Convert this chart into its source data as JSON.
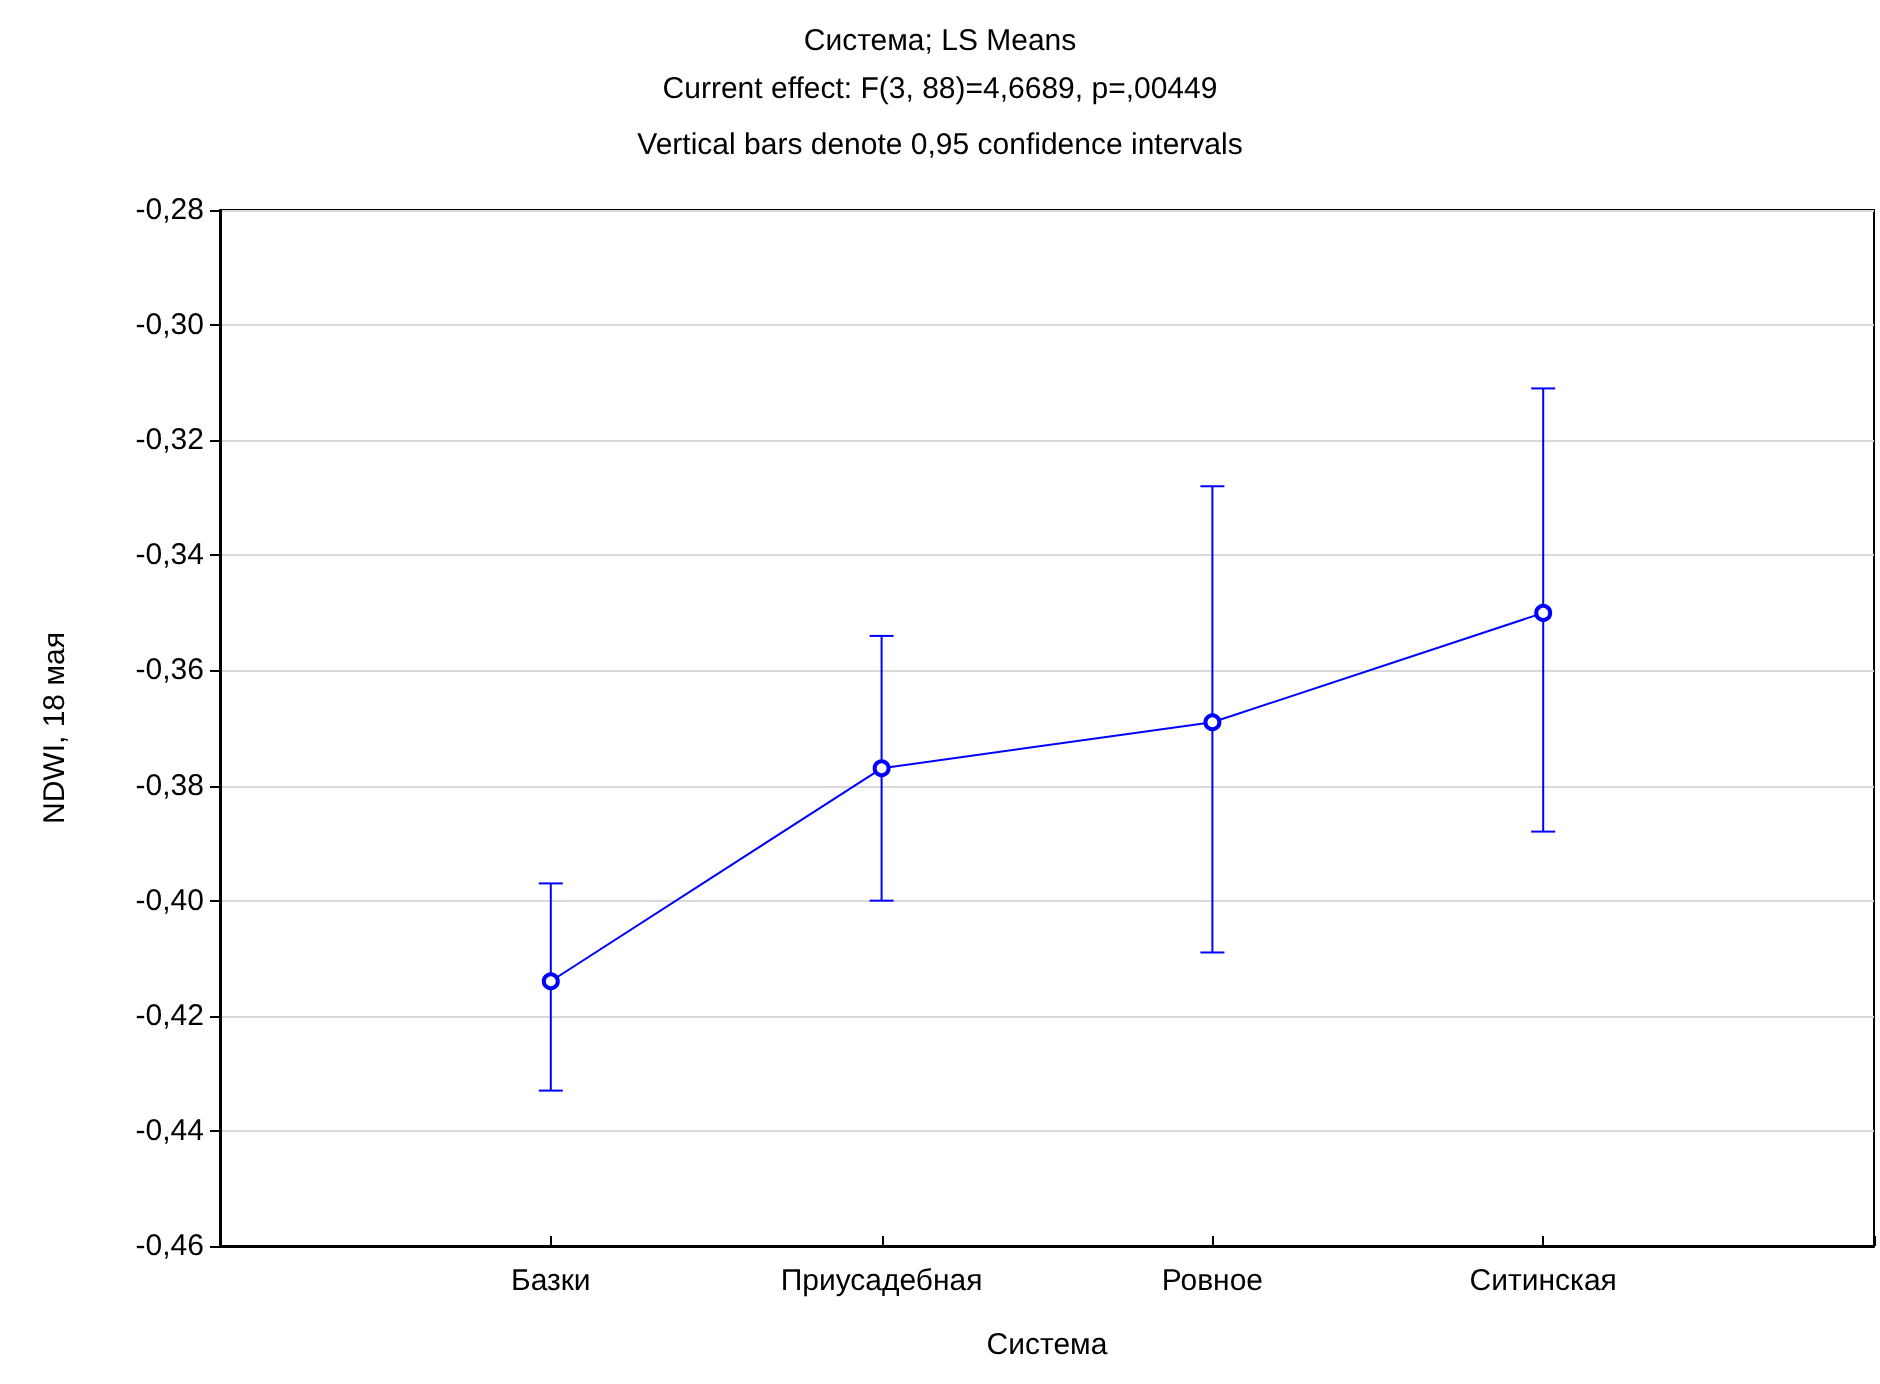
{
  "chart_data": {
    "type": "line",
    "title": "Система; LS Means",
    "subtitle": "Current effect: F(3, 88)=4,6689, p=,00449",
    "annotations": [
      "Vertical bars denote 0,95 confidence intervals"
    ],
    "xlabel": "Система",
    "ylabel": "NDWI, 18 мая",
    "categories": [
      "Базки",
      "Приусадебная",
      "Ровное",
      "Ситинская"
    ],
    "series": [
      {
        "color": "#0000ff",
        "values": [
          -0.414,
          -0.377,
          -0.369,
          -0.35
        ],
        "errors": [
          [
            -0.433,
            -0.397
          ],
          [
            -0.4,
            -0.354
          ],
          [
            -0.409,
            -0.328
          ],
          [
            -0.388,
            -0.311
          ]
        ]
      }
    ],
    "ylim": [
      -0.46,
      -0.28
    ],
    "yticks": [
      {
        "value": -0.46,
        "label": "-0,46"
      },
      {
        "value": -0.44,
        "label": "-0,44"
      },
      {
        "value": -0.42,
        "label": "-0,42"
      },
      {
        "value": -0.4,
        "label": "-0,40"
      },
      {
        "value": -0.38,
        "label": "-0,38"
      },
      {
        "value": -0.36,
        "label": "-0,36"
      },
      {
        "value": -0.34,
        "label": "-0,34"
      },
      {
        "value": -0.32,
        "label": "-0,32"
      },
      {
        "value": -0.3,
        "label": "-0,30"
      },
      {
        "value": -0.28,
        "label": "-0,28"
      }
    ],
    "grid": "y",
    "marker": "circle",
    "line_style": "solid"
  }
}
